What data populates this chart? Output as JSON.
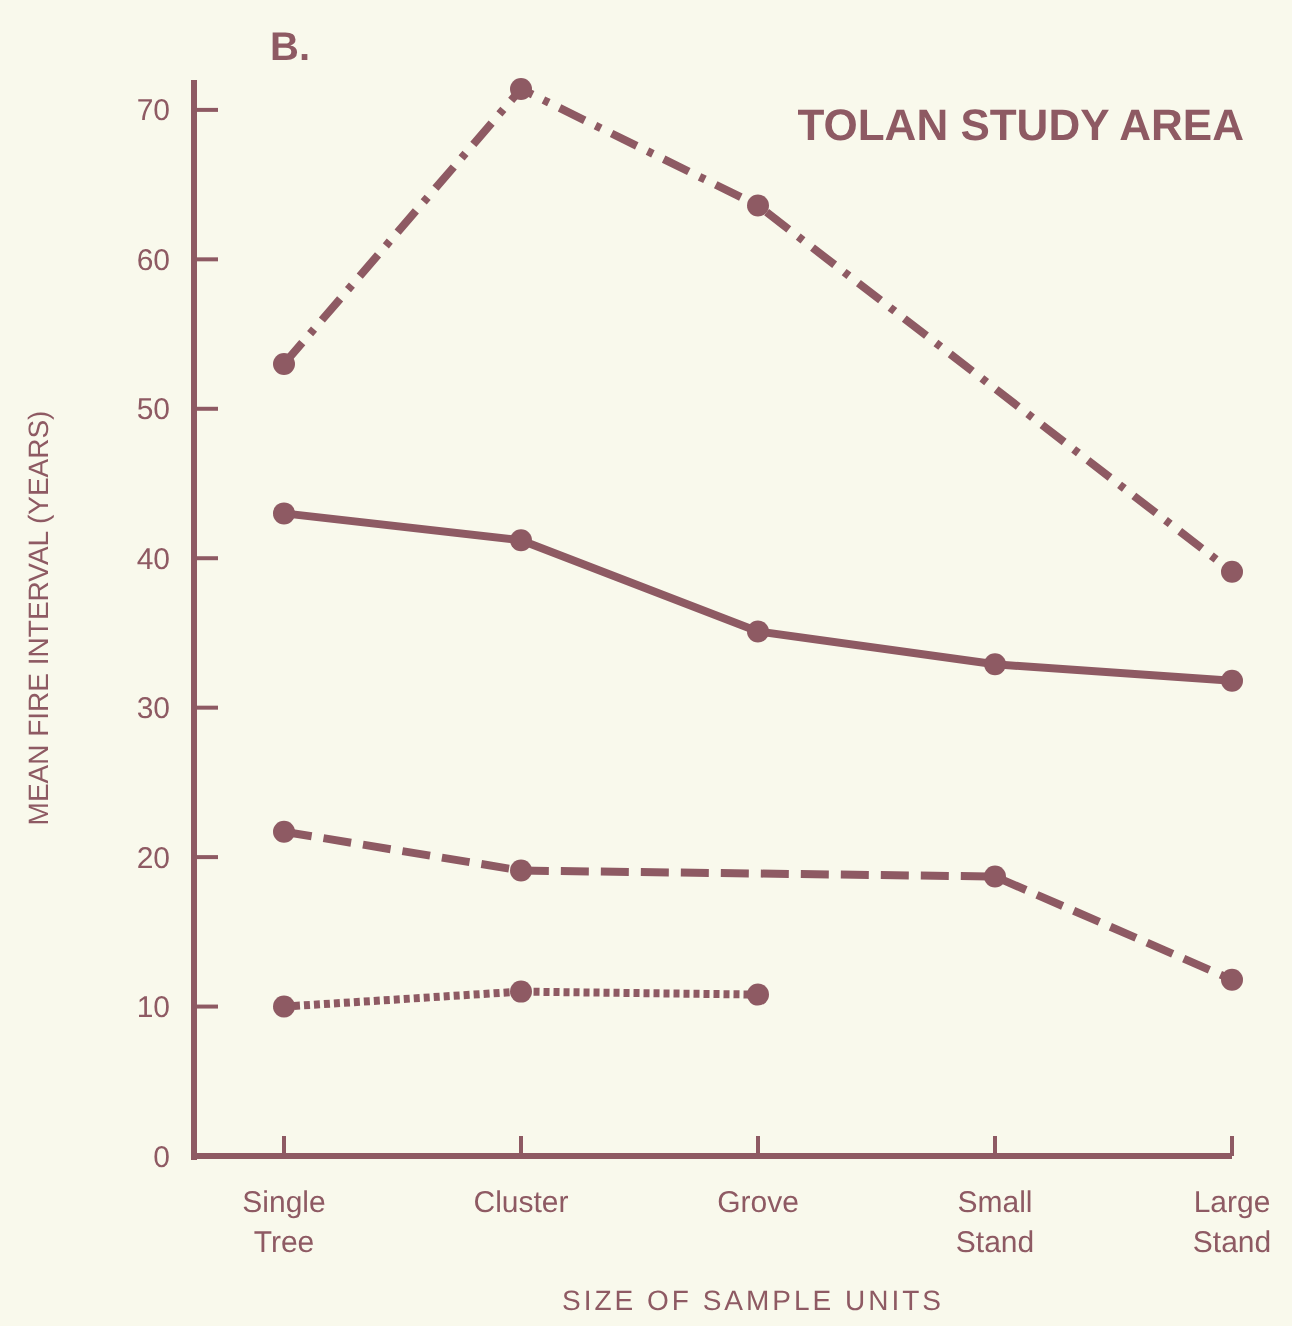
{
  "chart_data": {
    "type": "line",
    "title": "TOLAN STUDY AREA",
    "xlabel": "SIZE OF SAMPLE UNITS",
    "ylabel": "MEAN FIRE INTERVAL (YEARS)",
    "annotations": [
      "B."
    ],
    "categories": [
      "Single Tree",
      "Cluster",
      "Grove",
      "Small Stand",
      "Large Stand"
    ],
    "ylim": [
      0,
      72
    ],
    "yticks": [
      0,
      10,
      20,
      30,
      40,
      50,
      60,
      70
    ],
    "marker": "circle",
    "grid": false,
    "series": [
      {
        "color": "#8e5a63",
        "line_style": "dashdot",
        "x": [
          "Single Tree",
          "Cluster",
          "Grove",
          "Large Stand"
        ],
        "values": [
          53.0,
          71.4,
          63.6,
          39.1
        ]
      },
      {
        "color": "#8e5a63",
        "line_style": "solid",
        "values": [
          43.0,
          41.2,
          35.1,
          32.9,
          31.8
        ]
      },
      {
        "color": "#8e5a63",
        "line_style": "dashed",
        "x": [
          "Single Tree",
          "Cluster",
          "Small Stand",
          "Large Stand"
        ],
        "values": [
          21.7,
          19.1,
          18.7,
          11.8
        ]
      },
      {
        "color": "#8e5a63",
        "line_style": "dotted",
        "values": [
          10.0,
          11.0,
          10.8,
          null,
          null
        ]
      }
    ]
  }
}
